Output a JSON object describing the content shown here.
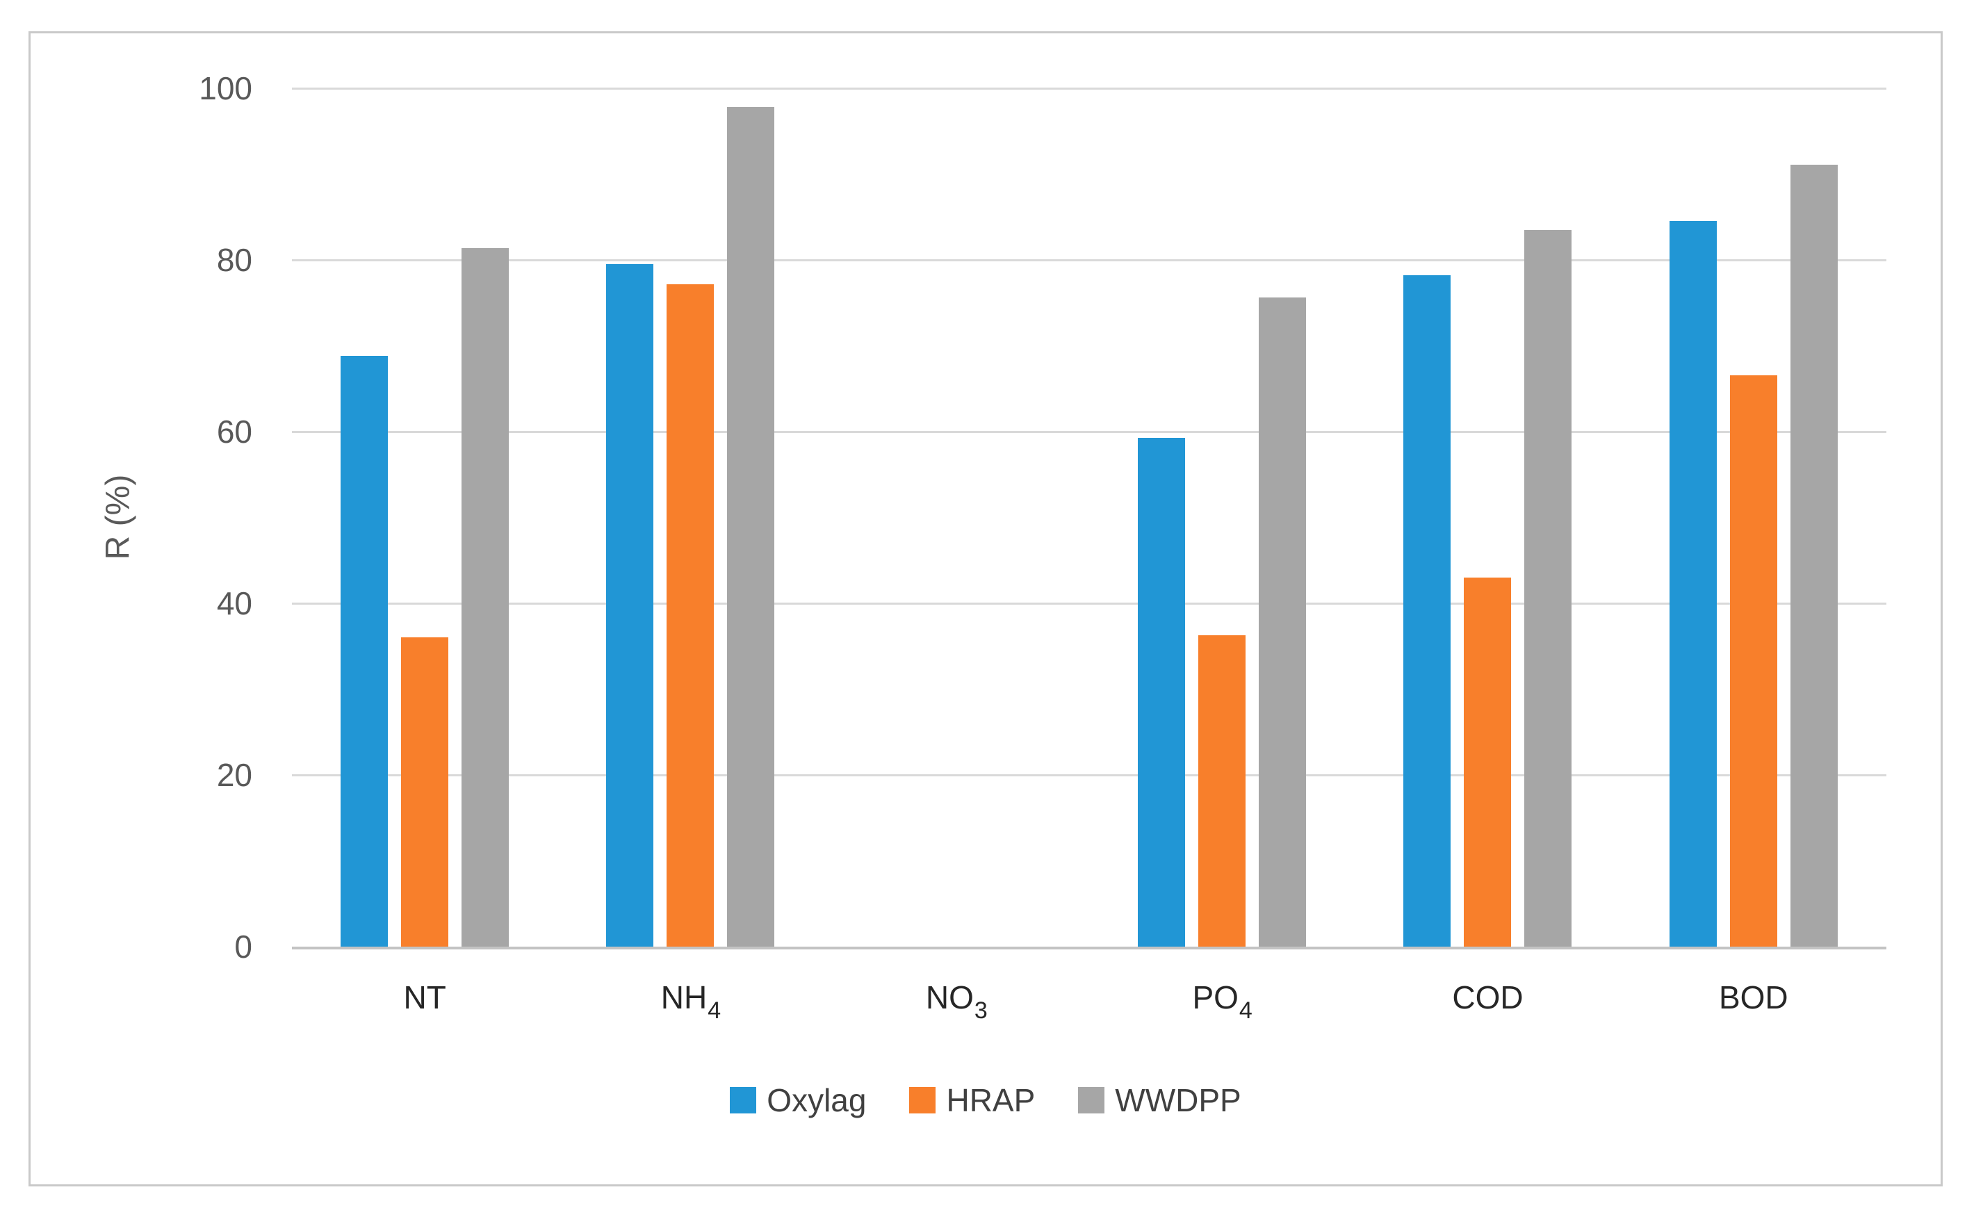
{
  "figure": {
    "background": "#ffffff",
    "border_color": "#c9c9c9"
  },
  "chart_style": {
    "gridline_color": "#d9d9d9",
    "axis_line_color": "#c3c3c3",
    "tick_label_color": "#595959",
    "category_label_color": "#262626",
    "legend_label_color": "#404040"
  },
  "chart_data": {
    "type": "bar",
    "title": "",
    "xlabel": "",
    "ylabel": "R (%)",
    "ylim": [
      0,
      100
    ],
    "yticks": [
      0,
      20,
      40,
      60,
      80,
      100
    ],
    "grid": true,
    "legend_position": "bottom",
    "categories": [
      {
        "main": "NT",
        "sub": ""
      },
      {
        "main": "NH",
        "sub": "4"
      },
      {
        "main": "NO",
        "sub": "3"
      },
      {
        "main": "PO",
        "sub": "4"
      },
      {
        "main": "COD",
        "sub": ""
      },
      {
        "main": "BOD",
        "sub": ""
      }
    ],
    "series": [
      {
        "name": "Oxylag",
        "color": "#2196d5",
        "values": [
          68.8,
          79.5,
          0,
          59.3,
          78.2,
          84.5
        ]
      },
      {
        "name": "HRAP",
        "color": "#f87f2b",
        "values": [
          36.0,
          77.2,
          0,
          36.3,
          43.0,
          66.6
        ]
      },
      {
        "name": "WWDPP",
        "color": "#a6a6a6",
        "values": [
          81.4,
          97.8,
          0,
          75.6,
          83.5,
          91.1
        ]
      }
    ]
  }
}
